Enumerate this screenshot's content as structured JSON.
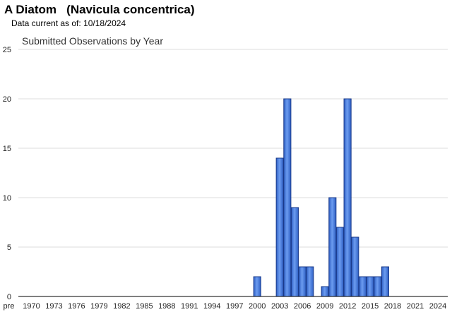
{
  "header": {
    "title": "A Diatom   (Navicula concentrica)",
    "subtitle": "Data current as of: 10/18/2024"
  },
  "chart_data": {
    "type": "bar",
    "title": "Submitted Observations by Year",
    "xlabel": "",
    "ylabel": "",
    "ylim": [
      0,
      25
    ],
    "yticks": [
      0,
      5,
      10,
      15,
      20,
      25
    ],
    "xtick_labels": [
      "pre",
      "1970",
      "1973",
      "1976",
      "1979",
      "1982",
      "1985",
      "1988",
      "1991",
      "1994",
      "1997",
      "2000",
      "2003",
      "2006",
      "2009",
      "2012",
      "2015",
      "2018",
      "2021",
      "2024"
    ],
    "categories": [
      "2000",
      "2003",
      "2004",
      "2005",
      "2006",
      "2007",
      "2009",
      "2010",
      "2011",
      "2012",
      "2013",
      "2014",
      "2015",
      "2016",
      "2017"
    ],
    "values": [
      2,
      14,
      20,
      9,
      3,
      3,
      1,
      10,
      7,
      20,
      6,
      2,
      2,
      2,
      3
    ],
    "grid": true,
    "bar_color": "#4a7fe0",
    "bar_edge_color": "#1a3a8a"
  }
}
